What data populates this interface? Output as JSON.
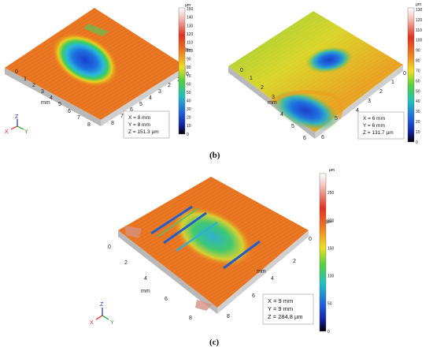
{
  "figures": [
    {
      "id": "a",
      "label": "",
      "axis_unit": "mm",
      "x_ticks": [
        "0",
        "1",
        "2",
        "3",
        "4",
        "5",
        "6",
        "7",
        "8"
      ],
      "y_ticks": [
        "0",
        "1",
        "2",
        "3",
        "4",
        "5",
        "6",
        "7",
        "8"
      ],
      "info": [
        "X = 8 mm",
        "Y = 8 mm",
        "Z = 151.3 µm"
      ],
      "colorbar": {
        "unit": "µm",
        "ticks": [
          "150",
          "140",
          "130",
          "120",
          "110",
          "100",
          "90",
          "80",
          "70",
          "60",
          "50",
          "40",
          "30",
          "20",
          "10",
          "0"
        ],
        "max": 151.3
      }
    },
    {
      "id": "b",
      "label": "(b)",
      "axis_unit": "mm",
      "x_ticks": [
        "0",
        "1",
        "2",
        "3",
        "4",
        "5",
        "6"
      ],
      "y_ticks": [
        "0",
        "1",
        "2",
        "3",
        "4",
        "5",
        "6"
      ],
      "info": [
        "X = 6 mm",
        "Y = 6 mm",
        "Z = 131.7 µm"
      ],
      "colorbar": {
        "unit": "µm",
        "ticks": [
          "130",
          "120",
          "110",
          "100",
          "90",
          "80",
          "70",
          "60",
          "50",
          "40",
          "30",
          "20",
          "10",
          "0"
        ],
        "max": 131.7
      }
    },
    {
      "id": "c",
      "label": "(c)",
      "axis_unit": "mm",
      "x_ticks": [
        "0",
        "2",
        "4",
        "6",
        "8"
      ],
      "y_ticks": [
        "0",
        "2",
        "4",
        "6",
        "8"
      ],
      "info": [
        "X = 9 mm",
        "Y = 9 mm",
        "Z = 284.8 µm"
      ],
      "colorbar": {
        "unit": "µm",
        "ticks": [
          "250",
          "200",
          "150",
          "100",
          "50",
          "0"
        ],
        "max": 284.8
      }
    }
  ],
  "triad": {
    "x": "X",
    "y": "Y",
    "z": "Z",
    "x_color": "#e02020",
    "y_color": "#20a020",
    "z_color": "#2030d0"
  },
  "colors": {
    "surface_high": "#e8731e",
    "surface_mid": "#f0c020",
    "surface_low": "#1f5fd8",
    "green": "#3cc050"
  }
}
